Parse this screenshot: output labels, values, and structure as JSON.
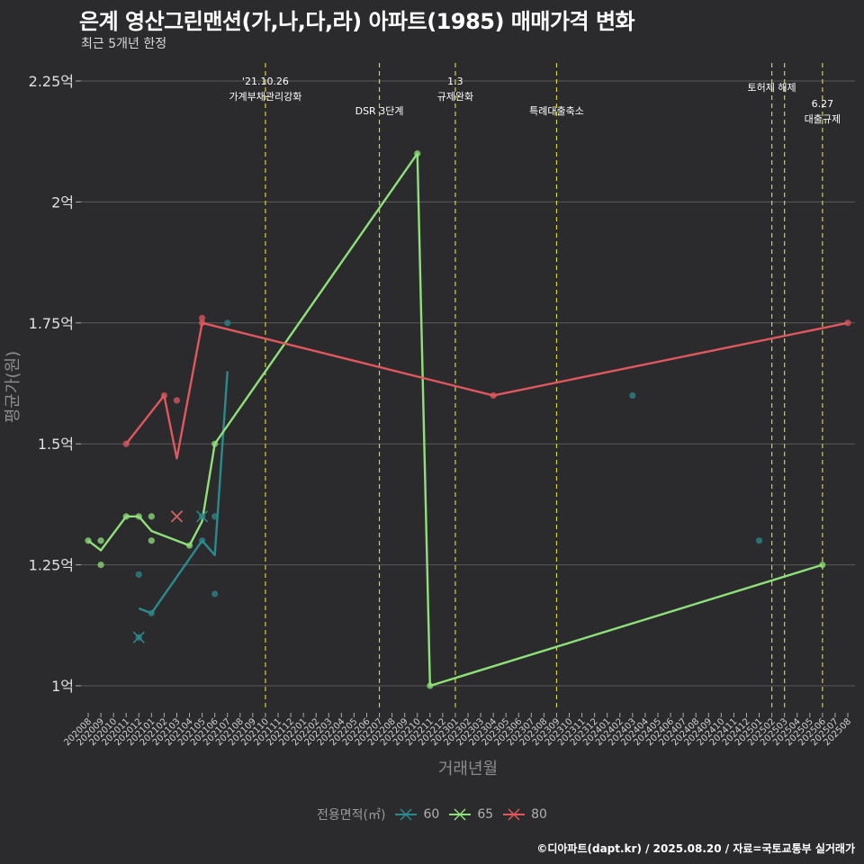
{
  "title": "은계 영산그린맨션(가,나,다,라) 아파트(1985) 매매가격 변화",
  "subtitle": "최근 5개년 한정",
  "footer": "©디아파트(dapt.kr) / 2025.08.20 / 자료=국토교통부 실거래가",
  "legend_title": "전용면적(㎡)",
  "colors": {
    "60": "#2a8a8c",
    "65": "#8fe07a",
    "80": "#e0585e",
    "event_line": "#d4d42a",
    "background": "#2b2b2d",
    "grid": "#5a5a5a"
  },
  "chart_data": {
    "type": "line",
    "xlabel": "거래년월",
    "ylabel": "평균가(원)",
    "ylim": [
      0.93,
      2.27
    ],
    "yticks": [
      1,
      1.25,
      1.5,
      1.75,
      2,
      2.25
    ],
    "ytick_labels": [
      "1억",
      "1.25억",
      "1.5억",
      "1.75억",
      "2억",
      "2.25억"
    ],
    "categories": [
      "202008",
      "202009",
      "202010",
      "202011",
      "202012",
      "202101",
      "202102",
      "202103",
      "202104",
      "202105",
      "202106",
      "202107",
      "202108",
      "202109",
      "202110",
      "202111",
      "202112",
      "202201",
      "202202",
      "202203",
      "202204",
      "202205",
      "202206",
      "202207",
      "202208",
      "202209",
      "202210",
      "202211",
      "202212",
      "202301",
      "202302",
      "202303",
      "202304",
      "202305",
      "202306",
      "202307",
      "202308",
      "202309",
      "202310",
      "202311",
      "202312",
      "202401",
      "202402",
      "202403",
      "202404",
      "202405",
      "202406",
      "202407",
      "202408",
      "202409",
      "202410",
      "202411",
      "202412",
      "202501",
      "202502",
      "202503",
      "202504",
      "202505",
      "202506",
      "202507",
      "202508"
    ],
    "series": [
      {
        "name": "60",
        "line": [
          [
            "202012",
            1.16
          ],
          [
            "202101",
            1.15
          ],
          [
            "202105",
            1.3
          ],
          [
            "202106",
            1.27
          ],
          [
            "202107",
            1.65
          ]
        ],
        "points": [
          [
            "202012",
            1.23
          ],
          [
            "202012",
            1.1
          ],
          [
            "202101",
            1.15
          ],
          [
            "202105",
            1.35
          ],
          [
            "202105",
            1.3
          ],
          [
            "202106",
            1.35
          ],
          [
            "202106",
            1.19
          ],
          [
            "202107",
            1.75
          ],
          [
            "202403",
            1.6
          ],
          [
            "202501",
            1.3
          ]
        ],
        "cancelled": [
          [
            "202012",
            1.1
          ],
          [
            "202105",
            1.35
          ]
        ]
      },
      {
        "name": "65",
        "line": [
          [
            "202008",
            1.3
          ],
          [
            "202009",
            1.28
          ],
          [
            "202011",
            1.35
          ],
          [
            "202012",
            1.35
          ],
          [
            "202101",
            1.32
          ],
          [
            "202104",
            1.29
          ],
          [
            "202105",
            1.34
          ],
          [
            "202106",
            1.5
          ],
          [
            "202210",
            2.1
          ],
          [
            "202211",
            1.0
          ],
          [
            "202506",
            1.25
          ]
        ],
        "points": [
          [
            "202008",
            1.3
          ],
          [
            "202009",
            1.3
          ],
          [
            "202009",
            1.25
          ],
          [
            "202011",
            1.35
          ],
          [
            "202012",
            1.35
          ],
          [
            "202101",
            1.35
          ],
          [
            "202101",
            1.3
          ],
          [
            "202104",
            1.29
          ],
          [
            "202106",
            1.5
          ],
          [
            "202210",
            2.1
          ],
          [
            "202211",
            1.0
          ],
          [
            "202506",
            1.25
          ]
        ],
        "cancelled": [
          [
            "202103",
            1.35
          ]
        ]
      },
      {
        "name": "80",
        "line": [
          [
            "202011",
            1.5
          ],
          [
            "202102",
            1.6
          ],
          [
            "202103",
            1.47
          ],
          [
            "202105",
            1.75
          ],
          [
            "202304",
            1.6
          ],
          [
            "202508",
            1.75
          ]
        ],
        "points": [
          [
            "202011",
            1.5
          ],
          [
            "202102",
            1.6
          ],
          [
            "202103",
            1.59
          ],
          [
            "202105",
            1.76
          ],
          [
            "202105",
            1.75
          ],
          [
            "202304",
            1.6
          ],
          [
            "202508",
            1.75
          ]
        ],
        "cancelled": [
          [
            "202103",
            1.35
          ]
        ]
      }
    ],
    "events": [
      {
        "x": "202110",
        "lines": [
          "'21.10.26",
          "가계부채관리강화"
        ],
        "row": 0
      },
      {
        "x": "202207",
        "lines": [
          "DSR 3단계"
        ],
        "row": 2
      },
      {
        "x": "202301",
        "lines": [
          "1.3",
          "규제완화"
        ],
        "row": 0
      },
      {
        "x": "202309",
        "lines": [
          "특례대출축소"
        ],
        "row": 2
      },
      {
        "x": "202502",
        "lines": [
          "토허제 해제"
        ],
        "row": 1
      },
      {
        "x": "202503",
        "lines": [],
        "row": 1
      },
      {
        "x": "202506",
        "lines": [
          "6.27",
          "대출규제"
        ],
        "row": 3
      }
    ],
    "legend_position": "bottom",
    "grid": true
  }
}
